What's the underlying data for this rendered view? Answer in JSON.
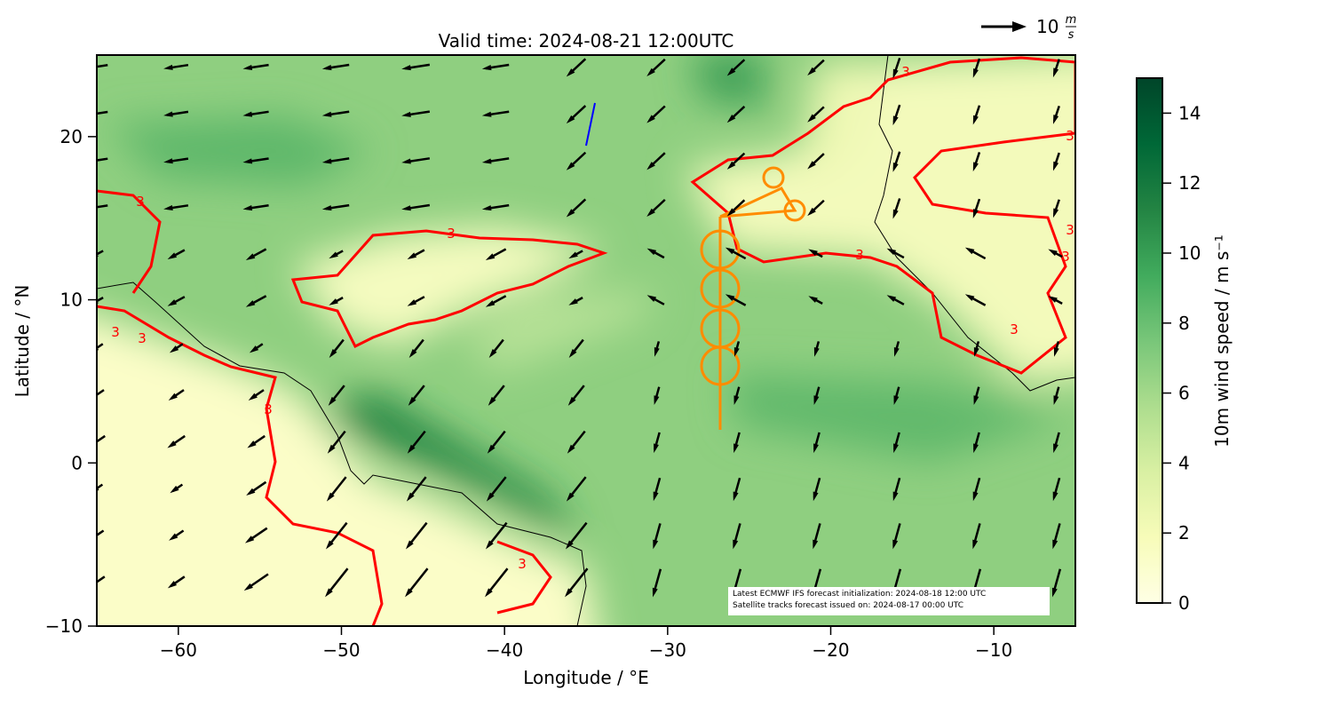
{
  "chart_data": {
    "type": "map",
    "title": "Valid time: 2024-08-21 12:00UTC",
    "x_label": "Longitude / °E",
    "y_label": "Latitude / °N",
    "xlim": [
      -65,
      -5
    ],
    "ylim": [
      -10,
      25
    ],
    "xticks": [
      {
        "value": -60,
        "label": "−60"
      },
      {
        "value": -50,
        "label": "−50"
      },
      {
        "value": -40,
        "label": "−40"
      },
      {
        "value": -30,
        "label": "−30"
      },
      {
        "value": -20,
        "label": "−20"
      },
      {
        "value": -10,
        "label": "−10"
      }
    ],
    "yticks": [
      {
        "value": -10,
        "label": "−10"
      },
      0,
      10,
      20
    ],
    "colorbar": {
      "label": "10m wind speed / m s⁻¹",
      "lim": [
        0,
        15
      ],
      "ticks": [
        0,
        2,
        4,
        6,
        8,
        10,
        12,
        14
      ],
      "colormap": [
        "#ffffe5",
        "#f7fcb9",
        "#d9f0a3",
        "#addd8e",
        "#78c679",
        "#41ab5d",
        "#238443",
        "#006837",
        "#004529"
      ]
    },
    "contour_level": 3,
    "contour_color": "#ff0000",
    "quiver_key": {
      "value": "10",
      "unit_top": "m",
      "unit_bottom": "s"
    },
    "annotation": [
      "Latest ECMWF IFS forecast initialization: 2024-08-18 12:00 UTC",
      "Satellite tracks forecast issued on: 2024-08-17 00:00 UTC"
    ]
  }
}
